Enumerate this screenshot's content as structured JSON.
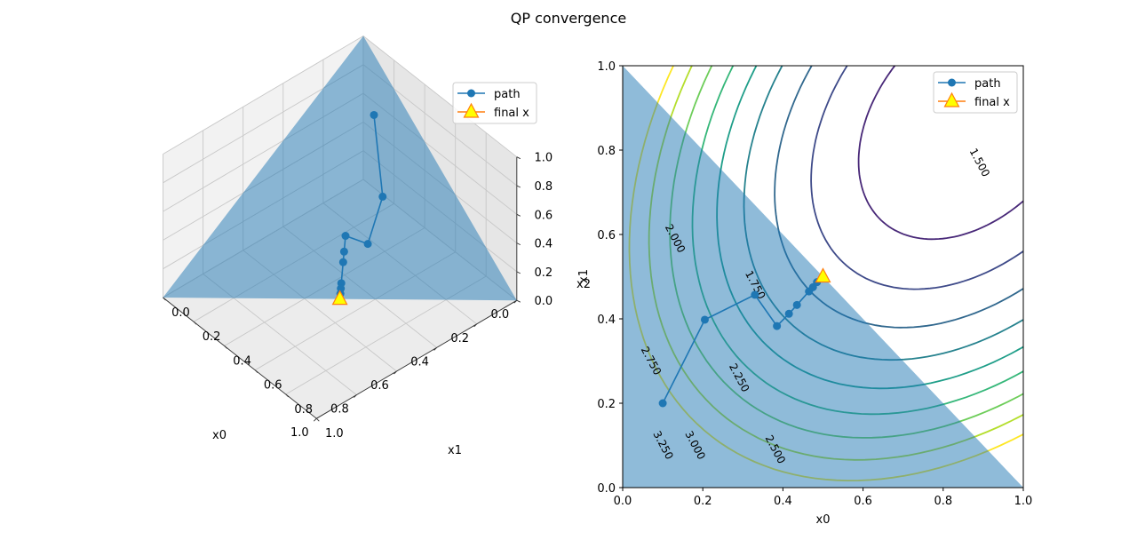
{
  "figure": {
    "title": "QP convergence"
  },
  "chart_data": [
    {
      "type": "scatter3d",
      "xlabel": "x0",
      "ylabel": "x1",
      "zlabel": "x2",
      "xlim": [
        0,
        1
      ],
      "ylim": [
        0,
        1
      ],
      "zlim": [
        0,
        1
      ],
      "xticks": [
        "0.0",
        "0.2",
        "0.4",
        "0.6",
        "0.8",
        "1.0"
      ],
      "yticks": [
        "0.0",
        "0.2",
        "0.4",
        "0.6",
        "0.8",
        "1.0"
      ],
      "zticks": [
        "0.0",
        "0.2",
        "0.4",
        "0.6",
        "0.8",
        "1.0"
      ],
      "grid": true,
      "simplex": [
        [
          1,
          0,
          0
        ],
        [
          0,
          1,
          0
        ],
        [
          0,
          0,
          1
        ]
      ],
      "series": [
        {
          "name": "path",
          "color": "#1f77b4",
          "marker": "circle",
          "points": [
            [
              0.1,
              0.2,
              0.7
            ],
            [
              0.21,
              0.4,
              0.39
            ],
            [
              0.33,
              0.46,
              0.21
            ],
            [
              0.38,
              0.38,
              0.24
            ],
            [
              0.41,
              0.41,
              0.18
            ],
            [
              0.43,
              0.43,
              0.14
            ],
            [
              0.47,
              0.47,
              0.06
            ],
            [
              0.48,
              0.48,
              0.04
            ],
            [
              0.49,
              0.49,
              0.02
            ]
          ]
        }
      ],
      "final_point": {
        "name": "final x",
        "x": 0.5,
        "y": 0.5,
        "z": 0.0,
        "marker": "triangle",
        "color": "#ffff00",
        "edge": "#ff7f0e"
      },
      "legend": [
        "path",
        "final x"
      ],
      "legend_position": "top-right"
    },
    {
      "type": "contour",
      "xlabel": "x0",
      "ylabel": "x1",
      "xlim": [
        0,
        1
      ],
      "ylim": [
        0,
        1
      ],
      "xticks": [
        "0.0",
        "0.2",
        "0.4",
        "0.6",
        "0.8",
        "1.0"
      ],
      "yticks": [
        "0.0",
        "0.2",
        "0.4",
        "0.6",
        "0.8",
        "1.0"
      ],
      "levels": [
        1.25,
        1.5,
        1.75,
        2.0,
        2.25,
        2.5,
        2.75,
        3.0,
        3.25,
        3.5
      ],
      "level_labels": [
        {
          "text": "1.500",
          "x": 0.89,
          "y": 0.77,
          "rot": 62
        },
        {
          "text": "1.750",
          "x": 0.33,
          "y": 0.48,
          "rot": 62
        },
        {
          "text": "2.000",
          "x": 0.13,
          "y": 0.59,
          "rot": 62
        },
        {
          "text": "2.250",
          "x": 0.29,
          "y": 0.26,
          "rot": 62
        },
        {
          "text": "2.500",
          "x": 0.38,
          "y": 0.09,
          "rot": 62
        },
        {
          "text": "2.750",
          "x": 0.07,
          "y": 0.3,
          "rot": 62
        },
        {
          "text": "3.000",
          "x": 0.18,
          "y": 0.1,
          "rot": 62
        },
        {
          "text": "3.250",
          "x": 0.1,
          "y": 0.1,
          "rot": 62
        }
      ],
      "feasible_region": [
        [
          0,
          0
        ],
        [
          0,
          1
        ],
        [
          1,
          0
        ]
      ],
      "region_color": "#1f77b4",
      "series": [
        {
          "name": "path",
          "color": "#1f77b4",
          "marker": "circle",
          "x": [
            0.1,
            0.205,
            0.33,
            0.385,
            0.415,
            0.435,
            0.465,
            0.475,
            0.485
          ],
          "y": [
            0.2,
            0.398,
            0.457,
            0.383,
            0.412,
            0.433,
            0.465,
            0.475,
            0.487
          ]
        }
      ],
      "final_point": {
        "name": "final x",
        "x": 0.5,
        "y": 0.5,
        "marker": "triangle",
        "color": "#ffff00",
        "edge": "#ff7f0e"
      },
      "legend": [
        "path",
        "final x"
      ],
      "legend_position": "top-right"
    }
  ]
}
